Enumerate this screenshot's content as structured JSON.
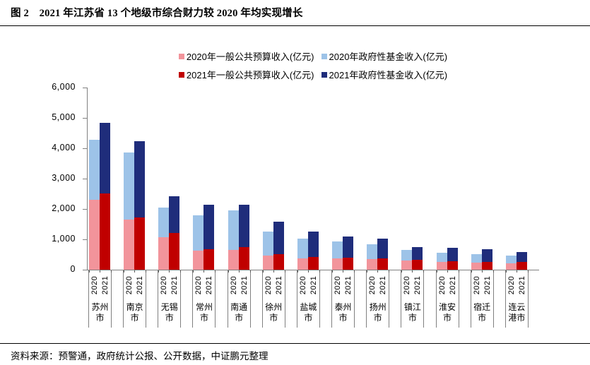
{
  "figure": {
    "title": "图 2　2021 年江苏省 13 个地级市综合财力较 2020 年均实现增长",
    "source": "资料来源：预警通，政府统计公报、公开数据，中证鹏元整理"
  },
  "colors": {
    "pink_2020_budget": "#F2949B",
    "lightblue_2020_fund": "#9DC3E8",
    "darkred_2021_budget": "#C00000",
    "navy_2021_fund": "#1F2D7B",
    "axis": "#808080",
    "text": "#000000"
  },
  "legend": {
    "rows": [
      [
        {
          "label": "2020年一般公共预算收入(亿元)",
          "color": "#F2949B"
        },
        {
          "label": "2020年政府性基金收入(亿元)",
          "color": "#9DC3E8"
        }
      ],
      [
        {
          "label": "2021年一般公共预算收入(亿元)",
          "color": "#C00000"
        },
        {
          "label": "2021年政府性基金收入(亿元)",
          "color": "#1F2D7B"
        }
      ]
    ]
  },
  "chart_data": {
    "type": "bar",
    "stacked": true,
    "title": "",
    "xlabel": "",
    "ylabel": "",
    "ylim": [
      0,
      6000
    ],
    "ytick_step": 1000,
    "ytick_labels": [
      "0",
      "1,000",
      "2,000",
      "3,000",
      "4,000",
      "5,000",
      "6,000"
    ],
    "grid": false,
    "legend_position": "top-center",
    "unit": "亿元",
    "categories": [
      "苏州市",
      "南京市",
      "无锡市",
      "常州市",
      "南通市",
      "徐州市",
      "盐城市",
      "泰州市",
      "扬州市",
      "镇江市",
      "淮安市",
      "宿迁市",
      "连云港市"
    ],
    "bar_labels": [
      "2020",
      "2021"
    ],
    "series": [
      {
        "name": "2020年一般公共预算收入(亿元)",
        "bar": "2020",
        "color": "#F2949B",
        "values": [
          2300,
          1640,
          1080,
          620,
          640,
          470,
          380,
          370,
          340,
          300,
          250,
          235,
          220
        ]
      },
      {
        "name": "2020年政府性基金收入(亿元)",
        "bar": "2020",
        "color": "#9DC3E8",
        "values": [
          1970,
          2210,
          970,
          1160,
          1310,
          790,
          650,
          550,
          500,
          360,
          310,
          285,
          250
        ]
      },
      {
        "name": "2021年一般公共预算收入(亿元)",
        "bar": "2021",
        "color": "#C00000",
        "values": [
          2510,
          1730,
          1200,
          680,
          740,
          510,
          430,
          400,
          370,
          330,
          290,
          265,
          250
        ]
      },
      {
        "name": "2021年政府性基金收入(亿元)",
        "bar": "2021",
        "color": "#1F2D7B",
        "values": [
          2330,
          2510,
          1230,
          1470,
          1400,
          1060,
          820,
          700,
          660,
          420,
          440,
          415,
          320
        ]
      }
    ],
    "totals_2020": [
      4270,
      3850,
      2050,
      1780,
      1950,
      1260,
      1030,
      920,
      840,
      660,
      560,
      520,
      470
    ],
    "totals_2021": [
      4840,
      4240,
      2430,
      2150,
      2140,
      1570,
      1250,
      1100,
      1030,
      750,
      730,
      680,
      570
    ]
  }
}
